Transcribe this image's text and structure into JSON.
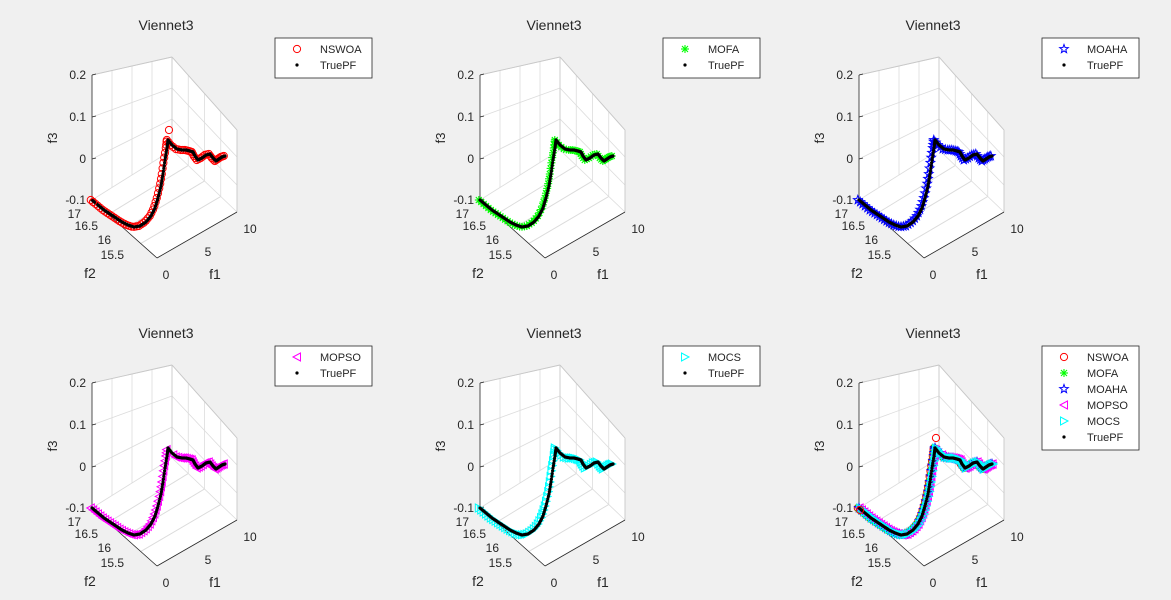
{
  "figure_background": "#f0f0f0",
  "colors": {
    "NSWOA": "#ff0000",
    "MOFA": "#00ff00",
    "MOAHA": "#0000ff",
    "MOPSO": "#ff00ff",
    "MOCS": "#00ffff",
    "TruePF": "#000000",
    "grid": "#dcdcdc",
    "axis": "#262626"
  },
  "chart_data": [
    {
      "type": "scatter",
      "title": "Viennet3",
      "xlabel": "f1",
      "ylabel": "f2",
      "zlabel": "f3",
      "xticks": [
        "0",
        "5",
        "10"
      ],
      "yticks": [
        "15.5",
        "16",
        "16.5",
        "17"
      ],
      "zticks": [
        "-0.1",
        "0",
        "0.1",
        "0.2"
      ],
      "xlim": [
        0,
        10
      ],
      "ylim": [
        15,
        17
      ],
      "zlim": [
        -0.1,
        0.2
      ],
      "legend": [
        "NSWOA",
        "TruePF"
      ],
      "legend_position": "northeast-outside",
      "series": [
        {
          "name": "NSWOA",
          "marker": "circle"
        },
        {
          "name": "TruePF",
          "marker": "dot"
        }
      ]
    },
    {
      "type": "scatter",
      "title": "Viennet3",
      "xlabel": "f1",
      "ylabel": "f2",
      "zlabel": "f3",
      "xticks": [
        "0",
        "5",
        "10"
      ],
      "yticks": [
        "15.5",
        "16",
        "16.5",
        "17"
      ],
      "zticks": [
        "-0.1",
        "0",
        "0.1",
        "0.2"
      ],
      "xlim": [
        0,
        10
      ],
      "ylim": [
        15,
        17
      ],
      "zlim": [
        -0.1,
        0.2
      ],
      "legend": [
        "MOFA",
        "TruePF"
      ],
      "legend_position": "northeast-outside",
      "series": [
        {
          "name": "MOFA",
          "marker": "asterisk"
        },
        {
          "name": "TruePF",
          "marker": "dot"
        }
      ]
    },
    {
      "type": "scatter",
      "title": "Viennet3",
      "xlabel": "f1",
      "ylabel": "f2",
      "zlabel": "f3",
      "xticks": [
        "0",
        "5",
        "10"
      ],
      "yticks": [
        "15.5",
        "16",
        "16.5",
        "17"
      ],
      "zticks": [
        "-0.1",
        "0",
        "0.1",
        "0.2"
      ],
      "xlim": [
        0,
        10
      ],
      "ylim": [
        15,
        17
      ],
      "zlim": [
        -0.1,
        0.2
      ],
      "legend": [
        "MOAHA",
        "TruePF"
      ],
      "legend_position": "northeast-outside",
      "series": [
        {
          "name": "MOAHA",
          "marker": "pentagram"
        },
        {
          "name": "TruePF",
          "marker": "dot"
        }
      ]
    },
    {
      "type": "scatter",
      "title": "Viennet3",
      "xlabel": "f1",
      "ylabel": "f2",
      "zlabel": "f3",
      "xticks": [
        "0",
        "5",
        "10"
      ],
      "yticks": [
        "15.5",
        "16",
        "16.5",
        "17"
      ],
      "zticks": [
        "-0.1",
        "0",
        "0.1",
        "0.2"
      ],
      "xlim": [
        0,
        10
      ],
      "ylim": [
        15,
        17
      ],
      "zlim": [
        -0.1,
        0.2
      ],
      "legend": [
        "MOPSO",
        "TruePF"
      ],
      "legend_position": "northeast-outside",
      "series": [
        {
          "name": "MOPSO",
          "marker": "triangle-left"
        },
        {
          "name": "TruePF",
          "marker": "dot"
        }
      ]
    },
    {
      "type": "scatter",
      "title": "Viennet3",
      "xlabel": "f1",
      "ylabel": "f2",
      "zlabel": "f3",
      "xticks": [
        "0",
        "5",
        "10"
      ],
      "yticks": [
        "15.5",
        "16",
        "16.5",
        "17"
      ],
      "zticks": [
        "-0.1",
        "0",
        "0.1",
        "0.2"
      ],
      "xlim": [
        0,
        10
      ],
      "ylim": [
        15,
        17
      ],
      "zlim": [
        -0.1,
        0.2
      ],
      "legend": [
        "MOCS",
        "TruePF"
      ],
      "legend_position": "northeast-outside",
      "series": [
        {
          "name": "MOCS",
          "marker": "triangle-right"
        },
        {
          "name": "TruePF",
          "marker": "dot"
        }
      ]
    },
    {
      "type": "scatter",
      "title": "Viennet3",
      "xlabel": "f1",
      "ylabel": "f2",
      "zlabel": "f3",
      "xticks": [
        "0",
        "5",
        "10"
      ],
      "yticks": [
        "15.5",
        "16",
        "16.5",
        "17"
      ],
      "zticks": [
        "-0.1",
        "0",
        "0.1",
        "0.2"
      ],
      "xlim": [
        0,
        10
      ],
      "ylim": [
        15,
        17
      ],
      "zlim": [
        -0.1,
        0.2
      ],
      "legend": [
        "NSWOA",
        "MOFA",
        "MOAHA",
        "MOPSO",
        "MOCS",
        "TruePF"
      ],
      "legend_position": "northeast-outside",
      "series": [
        {
          "name": "NSWOA",
          "marker": "circle"
        },
        {
          "name": "MOFA",
          "marker": "asterisk"
        },
        {
          "name": "MOAHA",
          "marker": "pentagram"
        },
        {
          "name": "MOPSO",
          "marker": "triangle-left"
        },
        {
          "name": "MOCS",
          "marker": "triangle-right"
        },
        {
          "name": "TruePF",
          "marker": "dot"
        }
      ]
    }
  ]
}
